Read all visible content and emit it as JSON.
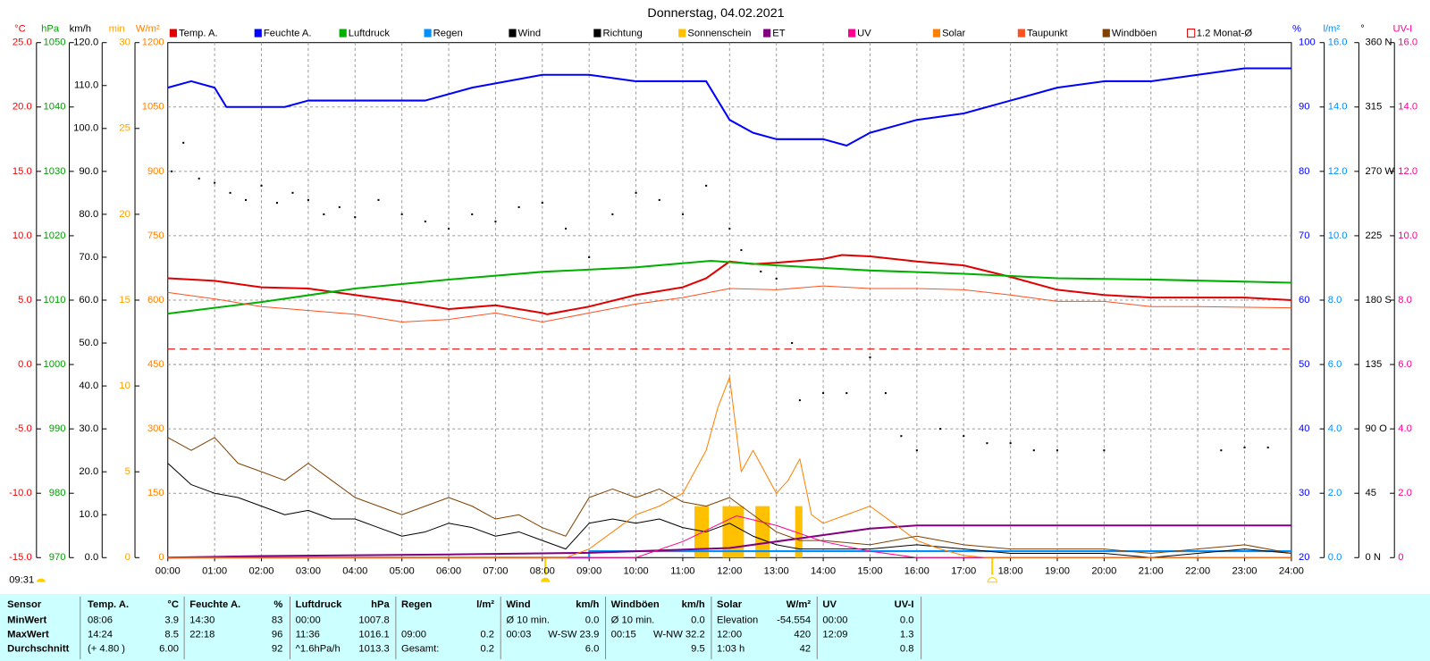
{
  "chart_data": {
    "type": "line",
    "title": "Donnerstag, 04.02.2021",
    "updated": "09:31",
    "grid": true,
    "xlim": [
      0,
      24
    ],
    "xticks": [
      {
        "value": 0,
        "label": "00:00"
      },
      {
        "value": 1,
        "label": "01:00"
      },
      {
        "value": 2,
        "label": "02:00"
      },
      {
        "value": 3,
        "label": "03:00"
      },
      {
        "value": 4,
        "label": "04:00"
      },
      {
        "value": 5,
        "label": "05:00"
      },
      {
        "value": 6,
        "label": "06:00"
      },
      {
        "value": 7,
        "label": "07:00"
      },
      {
        "value": 8,
        "label": "08:00"
      },
      {
        "value": 9,
        "label": "09:00"
      },
      {
        "value": 10,
        "label": "10:00"
      },
      {
        "value": 11,
        "label": "11:00"
      },
      {
        "value": 12,
        "label": "12:00"
      },
      {
        "value": 13,
        "label": "13:00"
      },
      {
        "value": 14,
        "label": "14:00"
      },
      {
        "value": 15,
        "label": "15:00"
      },
      {
        "value": 16,
        "label": "16:00"
      },
      {
        "value": 17,
        "label": "17:00"
      },
      {
        "value": 18,
        "label": "18:00"
      },
      {
        "value": 19,
        "label": "19:00"
      },
      {
        "value": 20,
        "label": "20:00"
      },
      {
        "value": 21,
        "label": "21:00"
      },
      {
        "value": 22,
        "label": "22:00"
      },
      {
        "value": 23,
        "label": "23:00"
      },
      {
        "value": 24,
        "label": "24:00"
      }
    ],
    "axes": {
      "temp": {
        "label": "°C",
        "color": "#ff0000",
        "lim": [
          -15,
          25
        ],
        "ticks": [
          {
            "value": 25,
            "label": "25.0"
          },
          {
            "value": 20,
            "label": "20.0"
          },
          {
            "value": 15,
            "label": "15.0"
          },
          {
            "value": 10,
            "label": "10.0"
          },
          {
            "value": 5,
            "label": "5.0"
          },
          {
            "value": 0,
            "label": "0.0"
          },
          {
            "value": -5,
            "label": "-5.0"
          },
          {
            "value": -10,
            "label": "-10.0"
          },
          {
            "value": -15,
            "label": "-15.0"
          }
        ]
      },
      "press": {
        "label": "hPa",
        "color": "#00a000",
        "lim": [
          970,
          1050
        ],
        "ticks": [
          1050,
          1040,
          1030,
          1020,
          1010,
          1000,
          990,
          980,
          970
        ]
      },
      "speed": {
        "label": "km/h",
        "color": "#000000",
        "lim": [
          0,
          120
        ],
        "ticks": [
          {
            "value": 120,
            "label": "120.0"
          },
          {
            "value": 110,
            "label": "110.0"
          },
          {
            "value": 100,
            "label": "100.0"
          },
          {
            "value": 90,
            "label": "90.0"
          },
          {
            "value": 80,
            "label": "80.0"
          },
          {
            "value": 70,
            "label": "70.0"
          },
          {
            "value": 60,
            "label": "60.0"
          },
          {
            "value": 50,
            "label": "50.0"
          },
          {
            "value": 40,
            "label": "40.0"
          },
          {
            "value": 30,
            "label": "30.0"
          },
          {
            "value": 20,
            "label": "20.0"
          },
          {
            "value": 10,
            "label": "10.0"
          },
          {
            "value": 0,
            "label": "0.0"
          }
        ]
      },
      "min": {
        "label": "min",
        "color": "#ffa000",
        "lim": [
          0,
          30
        ],
        "ticks": [
          30,
          25,
          20,
          15,
          10,
          5,
          0
        ]
      },
      "solar": {
        "label": "W/m²",
        "color": "#ff8000",
        "lim": [
          0,
          1200
        ],
        "ticks": [
          1200,
          1050,
          900,
          750,
          600,
          450,
          300,
          150,
          0
        ]
      },
      "hum": {
        "label": "%",
        "color": "#0000ff",
        "lim": [
          20,
          100
        ],
        "ticks": [
          100,
          90,
          80,
          70,
          60,
          50,
          40,
          30,
          20
        ]
      },
      "rain": {
        "label": "l/m²",
        "color": "#0090ff",
        "lim": [
          0,
          16
        ],
        "ticks": [
          {
            "value": 16,
            "label": "16.0"
          },
          {
            "value": 14,
            "label": "14.0"
          },
          {
            "value": 12,
            "label": "12.0"
          },
          {
            "value": 10,
            "label": "10.0"
          },
          {
            "value": 8,
            "label": "8.0"
          },
          {
            "value": 6,
            "label": "6.0"
          },
          {
            "value": 4,
            "label": "4.0"
          },
          {
            "value": 2,
            "label": "2.0"
          },
          {
            "value": 0,
            "label": "0.0"
          }
        ]
      },
      "dir": {
        "label": "°",
        "color": "#000000",
        "lim": [
          0,
          360
        ],
        "ticks": [
          {
            "value": 360,
            "label": "360 N"
          },
          315,
          {
            "value": 270,
            "label": "270 W"
          },
          225,
          {
            "value": 180,
            "label": "180 S"
          },
          135,
          {
            "value": 90,
            "label": "90 O"
          },
          45,
          {
            "value": 0,
            "label": "0 N"
          }
        ]
      },
      "uv": {
        "label": "UV-I",
        "color": "#ff0090",
        "lim": [
          0,
          16
        ],
        "ticks": [
          {
            "value": 16,
            "label": "16.0"
          },
          {
            "value": 14,
            "label": "14.0"
          },
          {
            "value": 12,
            "label": "12.0"
          },
          {
            "value": 10,
            "label": "10.0"
          },
          {
            "value": 8,
            "label": "8.0"
          },
          {
            "value": 6,
            "label": "6.0"
          },
          {
            "value": 4,
            "label": "4.0"
          },
          {
            "value": 2,
            "label": "2.0"
          },
          {
            "value": 0,
            "label": "0"
          }
        ]
      }
    },
    "series": [
      {
        "name": "Temp. A.",
        "color": "#e00000",
        "type": "line",
        "axis": "temp",
        "width": 2,
        "x": [
          0,
          1,
          2,
          3,
          4,
          5,
          6,
          7,
          8,
          8.1,
          9,
          10,
          11,
          11.5,
          12,
          12.5,
          13,
          14,
          14.4,
          15,
          16,
          17,
          18,
          19,
          20,
          21,
          22,
          23,
          24
        ],
        "values": [
          6.7,
          6.5,
          6.0,
          5.9,
          5.4,
          4.9,
          4.3,
          4.6,
          4.0,
          3.9,
          4.5,
          5.4,
          6.0,
          6.7,
          8.0,
          7.8,
          7.9,
          8.2,
          8.5,
          8.4,
          8.0,
          7.7,
          6.8,
          5.8,
          5.4,
          5.2,
          5.2,
          5.2,
          5.0
        ]
      },
      {
        "name": "Feuchte A.",
        "color": "#0000ff",
        "type": "line",
        "axis": "hum",
        "width": 2,
        "x": [
          0,
          0.5,
          1,
          1.25,
          2.5,
          3,
          5.5,
          6.5,
          8,
          9,
          10,
          11.5,
          12,
          12.5,
          13,
          14,
          14.5,
          15,
          16,
          17,
          18,
          19,
          20,
          21,
          22,
          23,
          24
        ],
        "values": [
          93,
          94,
          93,
          90,
          90,
          91,
          91,
          93,
          95,
          95,
          94,
          94,
          88,
          86,
          85,
          85,
          84,
          86,
          88,
          89,
          91,
          93,
          94,
          94,
          95,
          96,
          96
        ]
      },
      {
        "name": "Luftdruck",
        "color": "#00b000",
        "type": "line",
        "axis": "press",
        "width": 2,
        "x": [
          0,
          2,
          4,
          6,
          8,
          10,
          11.6,
          13,
          15,
          17,
          19,
          21,
          24
        ],
        "values": [
          1007.9,
          1009.7,
          1011.8,
          1013.2,
          1014.4,
          1015.1,
          1016.1,
          1015.4,
          1014.6,
          1014.1,
          1013.4,
          1013.2,
          1012.7
        ]
      },
      {
        "name": "Regen",
        "color": "#0090ff",
        "type": "line",
        "axis": "rain",
        "width": 2,
        "x": [
          0,
          9,
          9,
          24
        ],
        "values": [
          0,
          0,
          0.2,
          0.2
        ]
      },
      {
        "name": "Wind",
        "color": "#000000",
        "type": "line",
        "axis": "speed",
        "width": 1,
        "x": [
          0,
          0.5,
          1,
          1.5,
          2,
          2.5,
          3,
          3.5,
          4,
          4.5,
          5,
          5.5,
          6,
          6.5,
          7,
          7.5,
          8,
          8.5,
          9,
          9.5,
          10,
          10.5,
          11,
          11.5,
          12,
          12.5,
          13,
          13.5,
          14,
          15,
          16,
          17,
          18,
          19,
          20,
          21,
          22,
          23,
          24
        ],
        "values": [
          22,
          17,
          15,
          14,
          12,
          10,
          11,
          9,
          9,
          7,
          5,
          6,
          8,
          7,
          5,
          6,
          4,
          2,
          8,
          9,
          8,
          9,
          7,
          6,
          8,
          5,
          3,
          2,
          2,
          2,
          3,
          2,
          1,
          1,
          1,
          0,
          1,
          2,
          1
        ]
      },
      {
        "name": "Richtung",
        "color": "#000000",
        "type": "scatter",
        "axis": "dir",
        "x": [
          0.083,
          0.333,
          0.667,
          1,
          1.333,
          1.667,
          2,
          2.333,
          2.667,
          3,
          3.333,
          3.667,
          4,
          4.5,
          5,
          5.5,
          6,
          6.5,
          7,
          7.5,
          8,
          8.5,
          9,
          9.5,
          10,
          10.5,
          11,
          11.5,
          12,
          12.25,
          12.667,
          13,
          13.333,
          13.5,
          14,
          14.5,
          15,
          15.333,
          15.667,
          16,
          16.5,
          17,
          17.5,
          18,
          18.5,
          19,
          20,
          22.5,
          23,
          23.5
        ],
        "values": [
          270,
          290,
          265,
          262,
          255,
          250,
          260,
          248,
          255,
          250,
          240,
          245,
          238,
          250,
          240,
          235,
          230,
          240,
          235,
          245,
          248,
          230,
          210,
          240,
          255,
          250,
          240,
          260,
          230,
          215,
          200,
          195,
          150,
          110,
          115,
          115,
          140,
          115,
          85,
          75,
          90,
          85,
          80,
          80,
          75,
          75,
          75,
          75,
          77,
          77
        ]
      },
      {
        "name": "Sonnenschein",
        "color": "#ffc000",
        "type": "bar",
        "axis": "min",
        "x": [
          11.25,
          11.4,
          11.85,
          12.0,
          12.15,
          12.55,
          12.7,
          13.4
        ],
        "values": [
          3,
          3,
          3,
          3,
          3,
          3,
          3,
          3
        ]
      },
      {
        "name": "ET",
        "color": "#800080",
        "type": "line",
        "axis": "rain",
        "width": 2,
        "x": [
          0,
          2,
          6,
          9,
          12,
          15,
          16,
          24
        ],
        "values": [
          0,
          0.05,
          0.1,
          0.15,
          0.3,
          0.9,
          1.0,
          1.0
        ]
      },
      {
        "name": "UV",
        "color": "#ff0090",
        "type": "line",
        "axis": "uv",
        "width": 1,
        "x": [
          0,
          10,
          11,
          12,
          12.15,
          13,
          14,
          15,
          16,
          24
        ],
        "values": [
          0,
          0,
          0.5,
          1.2,
          1.3,
          1.0,
          0.5,
          0.2,
          0,
          0
        ]
      },
      {
        "name": "Solar",
        "color": "#ff8000",
        "type": "line",
        "axis": "solar",
        "width": 1,
        "x": [
          0,
          8.5,
          9,
          9.5,
          10,
          10.5,
          11,
          11.5,
          11.75,
          12,
          12.25,
          12.5,
          12.75,
          13,
          13.25,
          13.5,
          13.75,
          14,
          14.5,
          15,
          15.5,
          16,
          16.5,
          17,
          17.5,
          24
        ],
        "values": [
          0,
          0,
          20,
          60,
          100,
          120,
          150,
          250,
          350,
          420,
          200,
          250,
          200,
          150,
          180,
          230,
          100,
          80,
          100,
          120,
          80,
          40,
          20,
          5,
          0,
          0
        ]
      },
      {
        "name": "Taupunkt",
        "color": "#ff5020",
        "type": "line",
        "axis": "temp",
        "width": 1,
        "x": [
          0,
          1,
          2,
          4,
          5,
          6,
          7,
          8,
          9,
          10,
          11,
          12,
          13,
          14,
          15,
          16,
          17,
          18,
          19,
          20,
          21,
          22,
          24
        ],
        "values": [
          5.6,
          5.1,
          4.5,
          3.9,
          3.3,
          3.5,
          4.0,
          3.3,
          4.0,
          4.7,
          5.2,
          5.9,
          5.8,
          6.1,
          5.9,
          5.9,
          5.8,
          5.4,
          4.9,
          4.9,
          4.5,
          4.5,
          4.4
        ]
      },
      {
        "name": "Windböen",
        "color": "#804000",
        "type": "line",
        "axis": "speed",
        "width": 1,
        "x": [
          0,
          0.5,
          1,
          1.5,
          2,
          2.5,
          3,
          3.5,
          4,
          4.5,
          5,
          5.5,
          6,
          6.5,
          7,
          7.5,
          8,
          8.5,
          9,
          9.5,
          10,
          10.5,
          11,
          11.5,
          12,
          12.5,
          13,
          13.5,
          14,
          15,
          16,
          17,
          18,
          19,
          20,
          21,
          22,
          23,
          24
        ],
        "values": [
          28,
          25,
          28,
          22,
          20,
          18,
          22,
          18,
          14,
          12,
          10,
          12,
          14,
          12,
          9,
          10,
          7,
          5,
          14,
          16,
          14,
          16,
          13,
          12,
          14,
          10,
          6,
          4,
          4,
          3,
          5,
          3,
          2,
          2,
          2,
          1,
          2,
          3,
          1
        ]
      },
      {
        "name": "1.2 Monat-Ø",
        "color": "#e00000",
        "type": "dashed",
        "axis": "temp",
        "width": 1,
        "x": [
          0,
          24
        ],
        "values": [
          1.2,
          1.2
        ]
      }
    ]
  },
  "table": {
    "header": [
      "Sensor",
      "Temp. A.",
      "°C",
      "Feuchte A.",
      "%",
      "Luftdruck",
      "hPa",
      "Regen",
      "l/m²",
      "Wind",
      "km/h",
      "Windböen",
      "km/h",
      "Solar",
      "W/m²",
      "UV",
      "UV-I"
    ],
    "rows": [
      [
        "MinWert",
        "08:06",
        "3.9",
        "14:30",
        "83",
        "00:00",
        "1007.8",
        null,
        null,
        "Ø 10 min.",
        "0.0",
        "Ø 10 min.",
        "0.0",
        "Elevation",
        "-54.554",
        "00:00",
        "0.0"
      ],
      [
        "MaxWert",
        "14:24",
        "8.5",
        "22:18",
        "96",
        "11:36",
        "1016.1",
        "09:00",
        "0.2",
        "00:03",
        "W-SW 23.9",
        "00:15",
        "W-NW 32.2",
        "12:00",
        "420",
        "12:09",
        "1.3"
      ],
      [
        "Durchschnitt",
        "(+ 4.80 )",
        "6.00",
        null,
        "92",
        "^1.6hPa/h",
        "1013.3",
        "Gesamt:",
        "0.2",
        null,
        "6.0",
        null,
        "9.5",
        "1:03 h",
        "42",
        null,
        "0.8"
      ]
    ]
  }
}
